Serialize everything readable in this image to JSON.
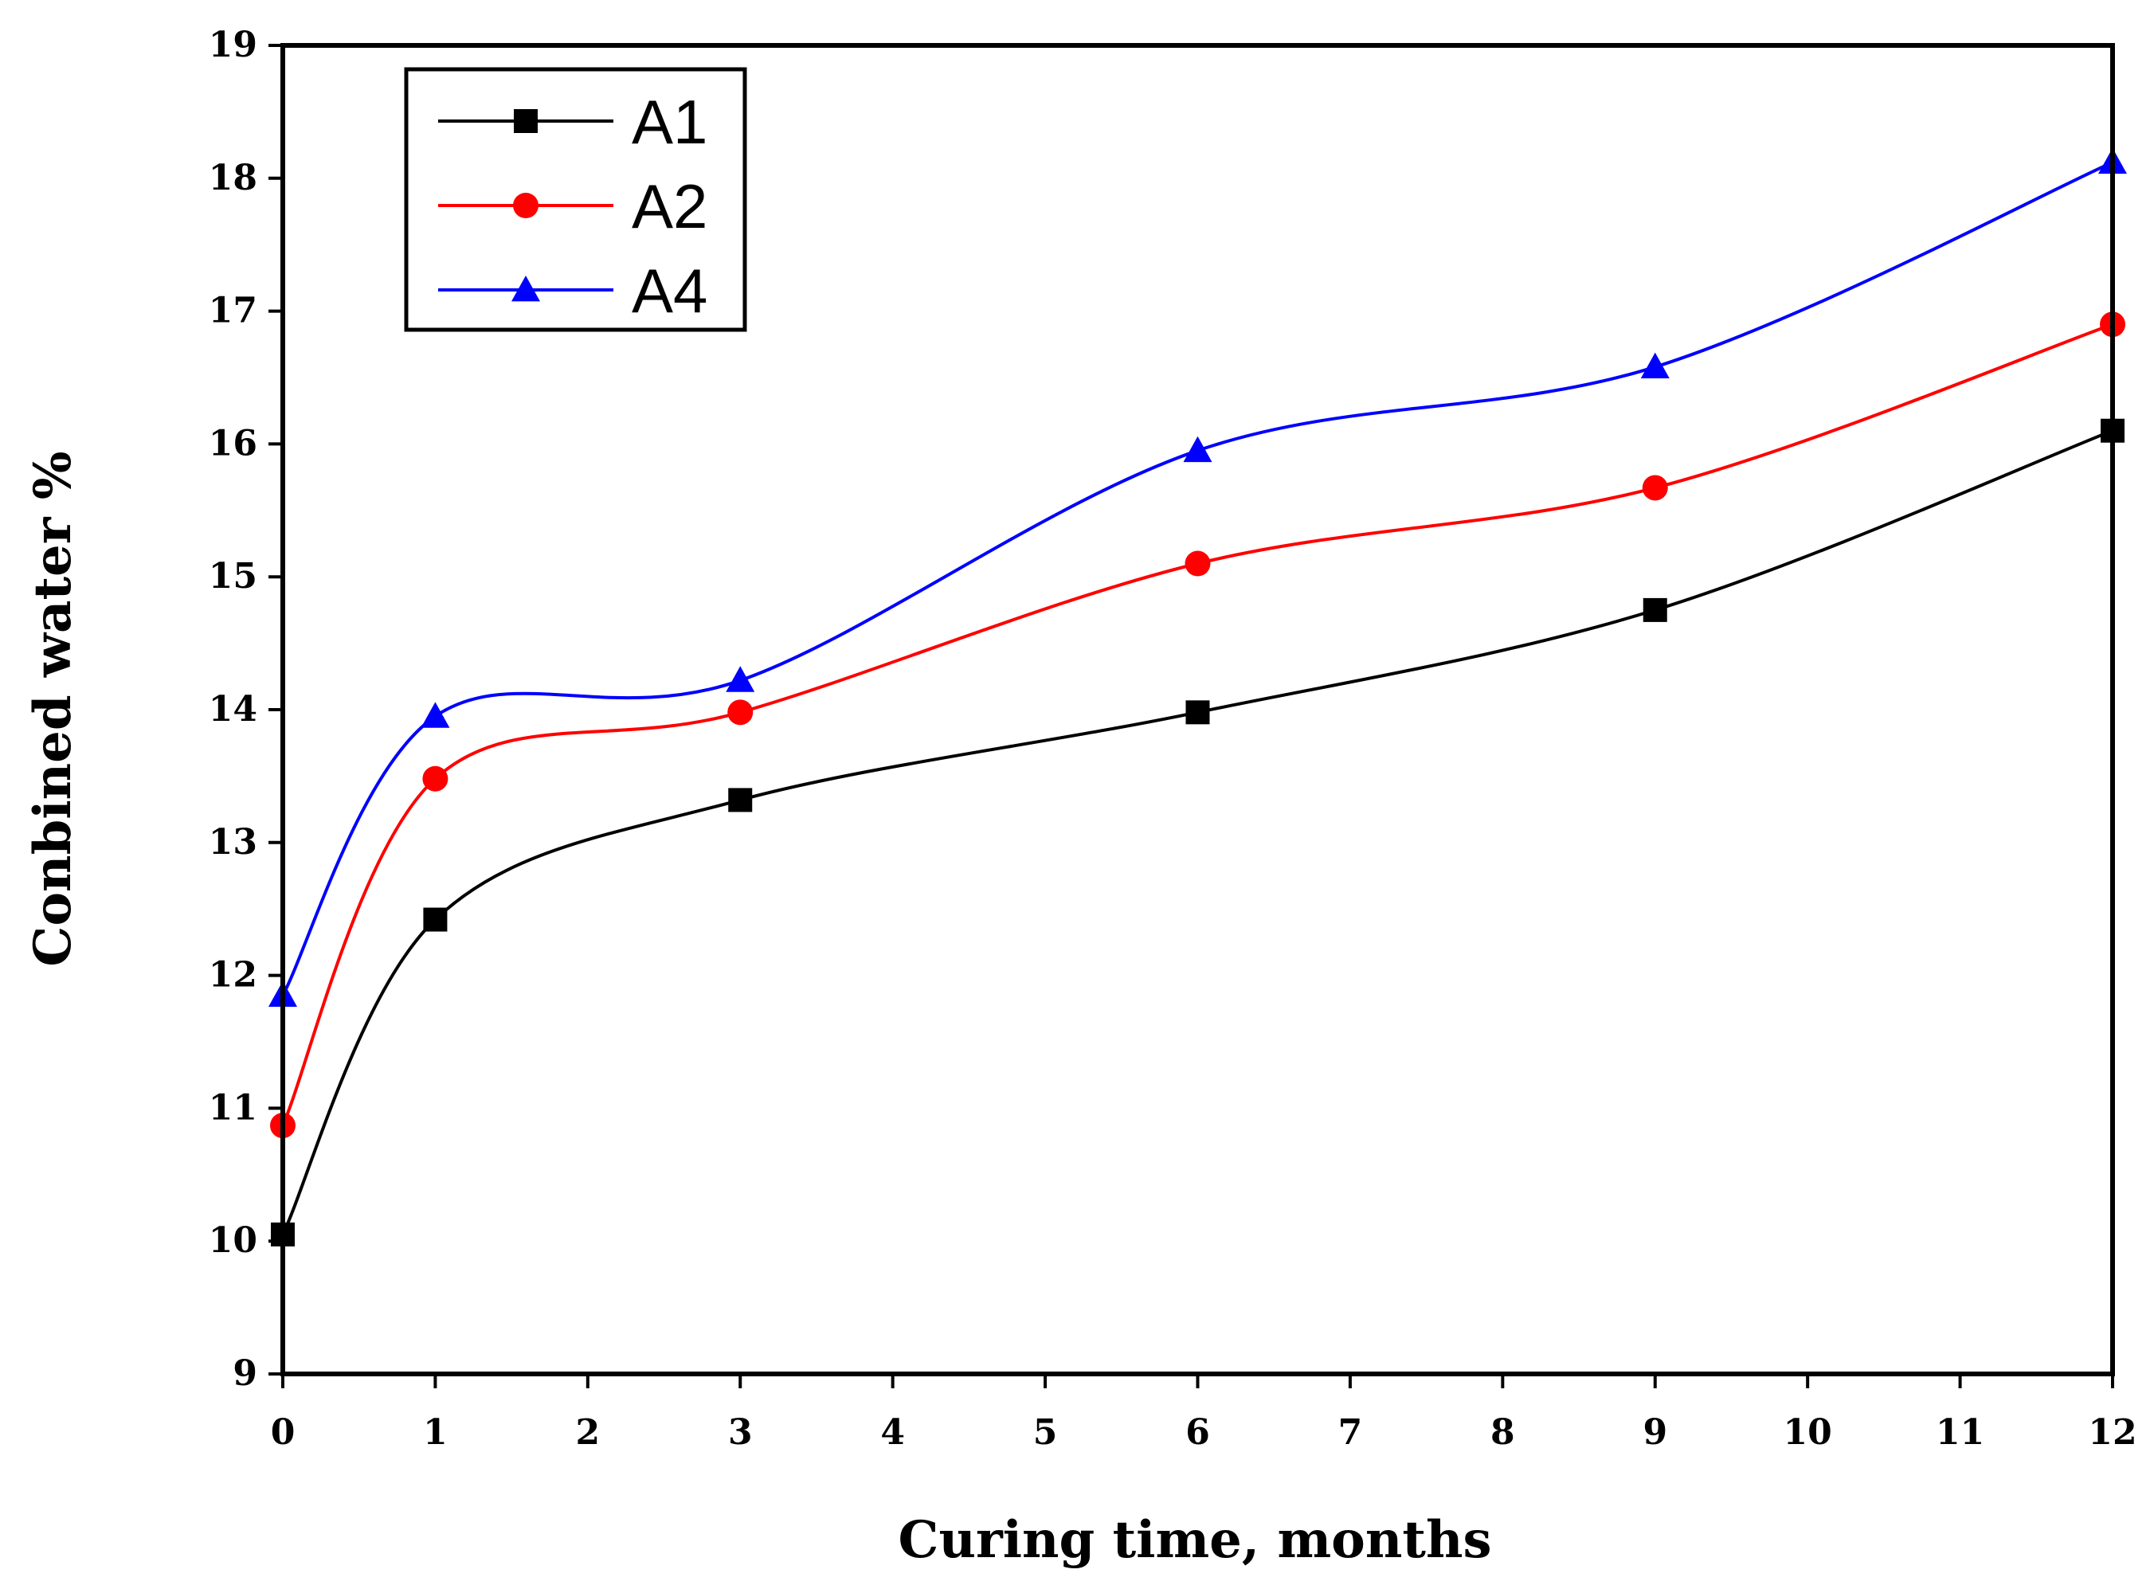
{
  "chart_data": {
    "type": "line",
    "title": "",
    "xlabel": "Curing time, months",
    "ylabel": "Conbined water %",
    "xlim": [
      0,
      12
    ],
    "ylim": [
      9,
      19
    ],
    "xticks": [
      0,
      1,
      2,
      3,
      4,
      5,
      6,
      7,
      8,
      9,
      10,
      11,
      12
    ],
    "yticks": [
      9,
      10,
      11,
      12,
      13,
      14,
      15,
      16,
      17,
      18,
      19
    ],
    "grid": false,
    "legend_position": "top-left",
    "x": [
      0,
      1,
      3,
      6,
      9,
      12
    ],
    "series": [
      {
        "name": "A1",
        "color": "#000000",
        "marker": "square",
        "values": [
          10.05,
          12.42,
          13.32,
          13.98,
          14.75,
          16.1
        ]
      },
      {
        "name": "A2",
        "color": "#ff0000",
        "marker": "circle",
        "values": [
          10.87,
          13.48,
          13.98,
          15.1,
          15.67,
          16.9
        ]
      },
      {
        "name": "A4",
        "color": "#0000ff",
        "marker": "triangle",
        "values": [
          11.85,
          13.95,
          14.22,
          15.95,
          16.58,
          18.12
        ]
      }
    ]
  }
}
